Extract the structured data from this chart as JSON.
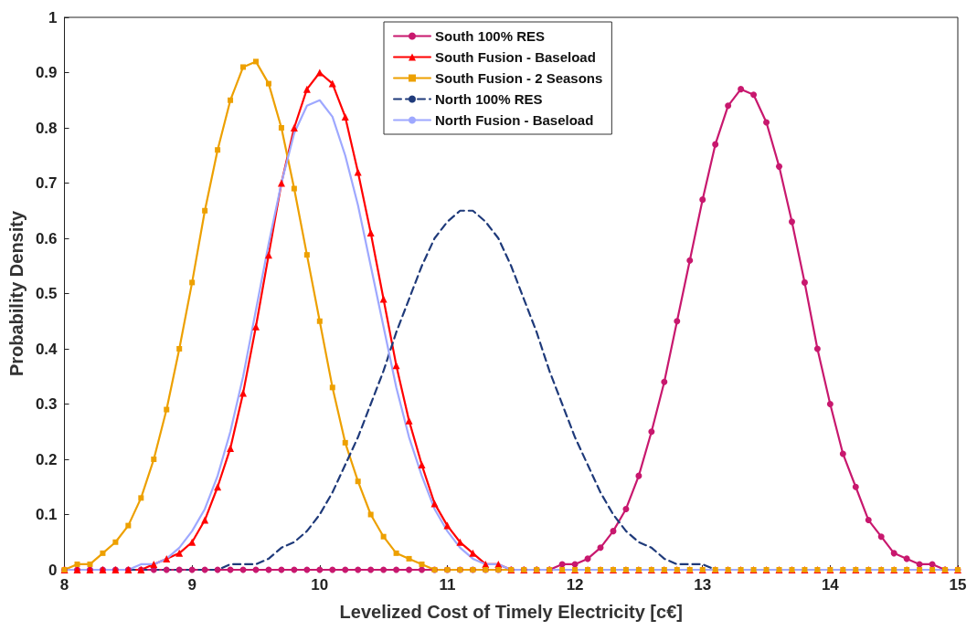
{
  "chart_data": {
    "type": "line",
    "xlabel": "Levelized Cost of Timely Electricity [c€]",
    "ylabel": "Probability Density",
    "x": [
      8.0,
      8.1,
      8.2,
      8.3,
      8.4,
      8.5,
      8.6,
      8.7,
      8.8,
      8.9,
      9.0,
      9.1,
      9.2,
      9.3,
      9.4,
      9.5,
      9.6,
      9.7,
      9.8,
      9.9,
      10.0,
      10.1,
      10.2,
      10.3,
      10.4,
      10.5,
      10.6,
      10.7,
      10.8,
      10.9,
      11.0,
      11.1,
      11.2,
      11.3,
      11.4,
      11.5,
      11.6,
      11.7,
      11.8,
      11.9,
      12.0,
      12.1,
      12.2,
      12.3,
      12.4,
      12.5,
      12.6,
      12.7,
      12.8,
      12.9,
      13.0,
      13.1,
      13.2,
      13.3,
      13.4,
      13.5,
      13.6,
      13.7,
      13.8,
      13.9,
      14.0,
      14.1,
      14.2,
      14.3,
      14.4,
      14.5,
      14.6,
      14.7,
      14.8,
      14.9,
      15.0
    ],
    "series": [
      {
        "name": "South 100% RES",
        "color": "#c8186e",
        "marker": "circle",
        "line_style": "solid",
        "values": [
          0,
          0,
          0,
          0,
          0,
          0,
          0,
          0,
          0,
          0,
          0,
          0,
          0,
          0,
          0,
          0,
          0,
          0,
          0,
          0,
          0,
          0,
          0,
          0,
          0,
          0,
          0,
          0,
          0,
          0,
          0,
          0,
          0,
          0,
          0,
          0,
          0,
          0,
          0,
          0.01,
          0.01,
          0.02,
          0.04,
          0.07,
          0.11,
          0.17,
          0.25,
          0.34,
          0.45,
          0.56,
          0.67,
          0.77,
          0.84,
          0.87,
          0.86,
          0.81,
          0.73,
          0.63,
          0.52,
          0.4,
          0.3,
          0.21,
          0.15,
          0.09,
          0.06,
          0.03,
          0.02,
          0.01,
          0.01,
          0,
          0
        ]
      },
      {
        "name": "South Fusion - Baseload",
        "color": "#ff0000",
        "marker": "triangle",
        "line_style": "solid",
        "values": [
          0,
          0,
          0,
          0,
          0,
          0,
          0,
          0.01,
          0.02,
          0.03,
          0.05,
          0.09,
          0.15,
          0.22,
          0.32,
          0.44,
          0.57,
          0.7,
          0.8,
          0.87,
          0.9,
          0.88,
          0.82,
          0.72,
          0.61,
          0.49,
          0.37,
          0.27,
          0.19,
          0.12,
          0.08,
          0.05,
          0.03,
          0.01,
          0.01,
          0,
          0,
          0,
          0,
          0,
          0,
          0,
          0,
          0,
          0,
          0,
          0,
          0,
          0,
          0,
          0,
          0,
          0,
          0,
          0,
          0,
          0,
          0,
          0,
          0,
          0,
          0,
          0,
          0,
          0,
          0,
          0,
          0,
          0,
          0,
          0
        ]
      },
      {
        "name": "South Fusion - 2 Seasons",
        "color": "#eda000",
        "marker": "square",
        "line_style": "solid",
        "values": [
          0,
          0.01,
          0.01,
          0.03,
          0.05,
          0.08,
          0.13,
          0.2,
          0.29,
          0.4,
          0.52,
          0.65,
          0.76,
          0.85,
          0.91,
          0.92,
          0.88,
          0.8,
          0.69,
          0.57,
          0.45,
          0.33,
          0.23,
          0.16,
          0.1,
          0.06,
          0.03,
          0.02,
          0.01,
          0,
          0,
          0,
          0,
          0,
          0,
          0,
          0,
          0,
          0,
          0,
          0,
          0,
          0,
          0,
          0,
          0,
          0,
          0,
          0,
          0,
          0,
          0,
          0,
          0,
          0,
          0,
          0,
          0,
          0,
          0,
          0,
          0,
          0,
          0,
          0,
          0,
          0,
          0,
          0,
          0,
          0
        ]
      },
      {
        "name": "North 100% RES",
        "color": "#1f3a7a",
        "marker": "none",
        "line_style": "dashed",
        "values": [
          null,
          null,
          null,
          null,
          0,
          0,
          0,
          0,
          0,
          0,
          0,
          0,
          0,
          0.01,
          0.01,
          0.01,
          0.02,
          0.04,
          0.05,
          0.07,
          0.1,
          0.14,
          0.19,
          0.24,
          0.3,
          0.36,
          0.43,
          0.49,
          0.55,
          0.6,
          0.63,
          0.65,
          0.65,
          0.63,
          0.6,
          0.55,
          0.49,
          0.43,
          0.36,
          0.3,
          0.24,
          0.19,
          0.14,
          0.1,
          0.07,
          0.05,
          0.04,
          0.02,
          0.01,
          0.01,
          0.01,
          0,
          0,
          0,
          0,
          0,
          0,
          0,
          0,
          0,
          0,
          0,
          0,
          0,
          0,
          0,
          null,
          null,
          null,
          null,
          null
        ]
      },
      {
        "name": "North Fusion - Baseload",
        "color": "#9ea8ff",
        "marker": "none",
        "line_style": "solid",
        "values": [
          0,
          0,
          0,
          0,
          0,
          0,
          0.01,
          0.01,
          0.02,
          0.04,
          0.07,
          0.11,
          0.17,
          0.25,
          0.35,
          0.47,
          0.59,
          0.7,
          0.79,
          0.84,
          0.85,
          0.82,
          0.75,
          0.66,
          0.55,
          0.44,
          0.33,
          0.24,
          0.17,
          0.11,
          0.07,
          0.04,
          0.02,
          0.01,
          0.01,
          0,
          0,
          0,
          0,
          0,
          0,
          0,
          0,
          0,
          0,
          0,
          0,
          0,
          0,
          0,
          0,
          0,
          0,
          0,
          0,
          0,
          0,
          0,
          0,
          0,
          0,
          0,
          0,
          0,
          0,
          0,
          0,
          0,
          0,
          0,
          0
        ]
      }
    ],
    "xlim": [
      8,
      15
    ],
    "xticks": [
      8,
      9,
      10,
      11,
      12,
      13,
      14,
      15
    ],
    "ylim": [
      0,
      1
    ],
    "yticks": [
      0,
      0.1,
      0.2,
      0.3,
      0.4,
      0.5,
      0.6,
      0.7,
      0.8,
      0.9,
      1
    ],
    "grid": false,
    "legend": "top center"
  }
}
